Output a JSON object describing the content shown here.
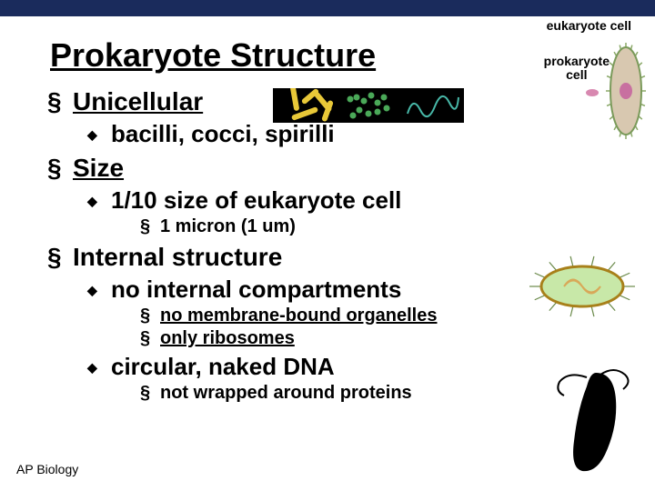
{
  "colors": {
    "top_bar": "#1a2b5c",
    "text": "#000000",
    "euk_fill": "#d8c8b0",
    "euk_stroke": "#7a9a5a",
    "euk_cilia": "#8aa868",
    "euk_nucleus": "#c870a0",
    "prok_small": "#d888b0",
    "bact_bg": "#000000",
    "bact_rod": "#e8c838",
    "bact_cocci": "#4aa858",
    "bact_spir": "#48b8a8",
    "prok_big_fill": "#c8e8a8",
    "prok_big_stroke": "#a8801a",
    "prok_big_flag": "#6a8a4a",
    "prok_big_dna": "#d8a858",
    "black_rod": "#000000"
  },
  "labels": {
    "eukaryote": "eukaryote cell",
    "prokaryote_top": "prokaryote",
    "prokaryote_bot": "cell"
  },
  "title": "Prokaryote Structure",
  "bullets": {
    "l1_unicellular": "Unicellular",
    "l2_shapes": "bacilli, cocci, spirilli",
    "l1_size": "Size",
    "l2_fraction": "1/10 size of eukaryote cell",
    "l3_micron": "1 micron (1 um)",
    "l1_internal": "Internal structure",
    "l2_nocomp": "no internal compartments",
    "l3_noorg": "no membrane-bound organelles",
    "l3_ribo": "only ribosomes",
    "l2_dna": "circular, naked DNA",
    "l3_notwrapped": "not wrapped around proteins"
  },
  "footer": "AP Biology"
}
